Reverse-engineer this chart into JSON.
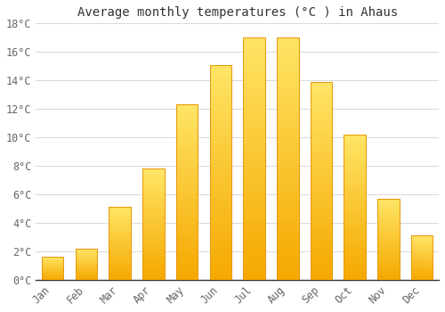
{
  "title": "Average monthly temperatures (°C ) in Ahaus",
  "months": [
    "Jan",
    "Feb",
    "Mar",
    "Apr",
    "May",
    "Jun",
    "Jul",
    "Aug",
    "Sep",
    "Oct",
    "Nov",
    "Dec"
  ],
  "temperatures": [
    1.6,
    2.2,
    5.1,
    7.8,
    12.3,
    15.1,
    17.0,
    17.0,
    13.9,
    10.2,
    5.7,
    3.1
  ],
  "color_bottom": "#F5A800",
  "color_top": "#FFE566",
  "bar_edge_color": "#E8960A",
  "ylim": [
    0,
    18
  ],
  "yticks": [
    0,
    2,
    4,
    6,
    8,
    10,
    12,
    14,
    16,
    18
  ],
  "background_color": "#ffffff",
  "grid_color": "#d8d8d8",
  "title_fontsize": 10,
  "tick_fontsize": 8.5,
  "font_family": "monospace",
  "bar_width": 0.65,
  "figsize": [
    5.0,
    3.5
  ],
  "dpi": 100
}
